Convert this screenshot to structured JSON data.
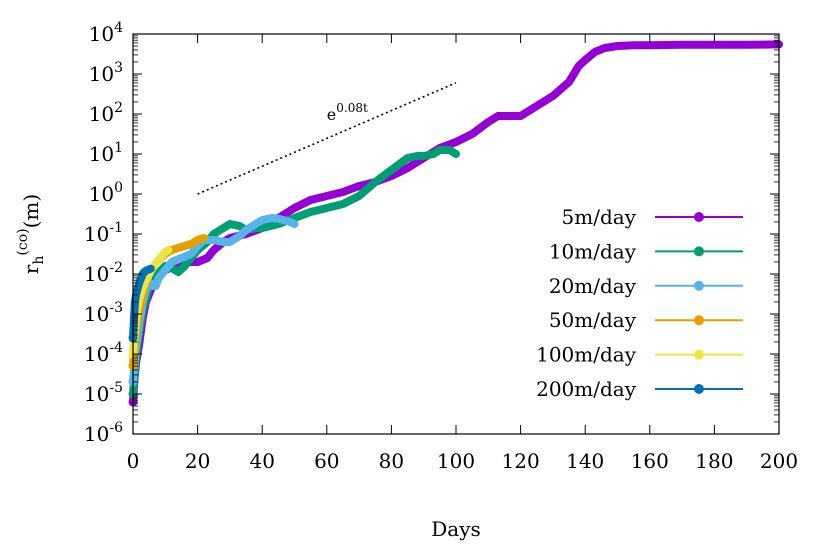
{
  "chart_data": {
    "type": "line",
    "xlabel": "Days",
    "ylabel": "r_h^(co)(m)",
    "xlim": [
      0,
      200
    ],
    "ylim_log10": [
      -6,
      4
    ],
    "yscale": "log",
    "grid": false,
    "legend_position": "right",
    "x_ticks": [
      "0",
      "20",
      "40",
      "60",
      "80",
      "100",
      "120",
      "140",
      "160",
      "180",
      "200"
    ],
    "y_ticks": [
      {
        "base": "10",
        "exp": "-6"
      },
      {
        "base": "10",
        "exp": "-5"
      },
      {
        "base": "10",
        "exp": "-4"
      },
      {
        "base": "10",
        "exp": "-3"
      },
      {
        "base": "10",
        "exp": "-2"
      },
      {
        "base": "10",
        "exp": "-1"
      },
      {
        "base": "10",
        "exp": "0"
      },
      {
        "base": "10",
        "exp": "1"
      },
      {
        "base": "10",
        "exp": "2"
      },
      {
        "base": "10",
        "exp": "3"
      },
      {
        "base": "10",
        "exp": "4"
      }
    ],
    "annotation": {
      "base": "e",
      "exp": "0.08t",
      "line_x": [
        20,
        100
      ],
      "line_log10_y": [
        0.0,
        2.78
      ]
    },
    "series": [
      {
        "name": "5m/day",
        "color": "#9400d3",
        "x": [
          0,
          0.5,
          1,
          2,
          3,
          4,
          5,
          6,
          8,
          10,
          13,
          15,
          18,
          20,
          23,
          25,
          28,
          30,
          35,
          40,
          45,
          50,
          55,
          60,
          65,
          70,
          75,
          80,
          85,
          90,
          95,
          100,
          105,
          110,
          113,
          117,
          120,
          123,
          127,
          130,
          135,
          138,
          140,
          143,
          146,
          150,
          155,
          160,
          170,
          180,
          190,
          200
        ],
        "log10_y": [
          -5.2,
          -4.6,
          -4.2,
          -3.7,
          -3.1,
          -2.7,
          -2.5,
          -2.3,
          -2.0,
          -1.9,
          -1.8,
          -1.75,
          -1.7,
          -1.7,
          -1.6,
          -1.4,
          -1.2,
          -1.1,
          -1.0,
          -0.85,
          -0.6,
          -0.35,
          -0.15,
          -0.05,
          0.05,
          0.2,
          0.3,
          0.45,
          0.65,
          0.9,
          1.15,
          1.3,
          1.5,
          1.8,
          1.95,
          1.95,
          1.95,
          2.1,
          2.3,
          2.45,
          2.8,
          3.2,
          3.35,
          3.55,
          3.65,
          3.7,
          3.72,
          3.72,
          3.73,
          3.73,
          3.73,
          3.74
        ]
      },
      {
        "name": "10m/day",
        "color": "#009e73",
        "x": [
          0,
          0.5,
          1,
          2,
          3,
          4,
          5,
          7,
          10,
          12,
          14,
          16,
          18,
          20,
          23,
          25,
          28,
          30,
          33,
          35,
          38,
          40,
          45,
          50,
          55,
          60,
          65,
          70,
          75,
          80,
          85,
          88,
          90,
          93,
          95,
          98,
          100
        ],
        "log10_y": [
          -5.0,
          -4.5,
          -4.0,
          -3.4,
          -2.9,
          -2.6,
          -2.3,
          -2.05,
          -1.8,
          -1.85,
          -1.95,
          -1.8,
          -1.6,
          -1.4,
          -1.2,
          -1.0,
          -0.85,
          -0.75,
          -0.8,
          -0.9,
          -0.85,
          -0.85,
          -0.75,
          -0.6,
          -0.45,
          -0.35,
          -0.25,
          -0.05,
          0.3,
          0.6,
          0.9,
          0.95,
          0.95,
          1.0,
          1.1,
          1.1,
          1.0
        ]
      },
      {
        "name": "20m/day",
        "color": "#56b4e9",
        "x": [
          0,
          0.5,
          1,
          2,
          3,
          4,
          5,
          6,
          7,
          8,
          10,
          12,
          15,
          18,
          20,
          22,
          25,
          28,
          30,
          33,
          35,
          38,
          40,
          43,
          45,
          48,
          50
        ],
        "log10_y": [
          -4.7,
          -4.2,
          -3.8,
          -3.2,
          -2.7,
          -2.4,
          -2.2,
          -2.3,
          -2.3,
          -2.1,
          -1.9,
          -1.7,
          -1.6,
          -1.5,
          -1.3,
          -1.15,
          -1.15,
          -1.2,
          -1.2,
          -1.05,
          -0.9,
          -0.75,
          -0.65,
          -0.6,
          -0.62,
          -0.68,
          -0.75
        ]
      },
      {
        "name": "50m/day",
        "color": "#e69f00",
        "x": [
          0,
          0.5,
          1,
          2,
          3,
          4,
          5,
          6,
          8,
          10,
          12,
          14,
          16,
          18,
          20,
          22
        ],
        "log10_y": [
          -4.3,
          -3.8,
          -3.4,
          -2.9,
          -2.5,
          -2.2,
          -2.0,
          -1.85,
          -1.65,
          -1.5,
          -1.4,
          -1.35,
          -1.3,
          -1.25,
          -1.15,
          -1.1
        ]
      },
      {
        "name": "100m/day",
        "color": "#f0e442",
        "x": [
          0,
          0.5,
          1,
          1.5,
          2,
          3,
          4,
          5,
          6,
          7,
          8,
          9,
          10,
          11
        ],
        "log10_y": [
          -4.0,
          -3.5,
          -3.1,
          -2.8,
          -2.6,
          -2.35,
          -2.15,
          -2.0,
          -1.85,
          -1.75,
          -1.65,
          -1.55,
          -1.45,
          -1.4
        ]
      },
      {
        "name": "200m/day",
        "color": "#0072b2",
        "x": [
          0,
          0.3,
          0.6,
          1,
          1.5,
          2,
          2.5,
          3,
          3.5,
          4,
          4.5,
          5,
          5.5
        ],
        "log10_y": [
          -3.6,
          -3.1,
          -2.7,
          -2.5,
          -2.35,
          -2.2,
          -2.1,
          -2.0,
          -1.95,
          -1.92,
          -1.9,
          -1.88,
          -1.87
        ]
      }
    ]
  }
}
